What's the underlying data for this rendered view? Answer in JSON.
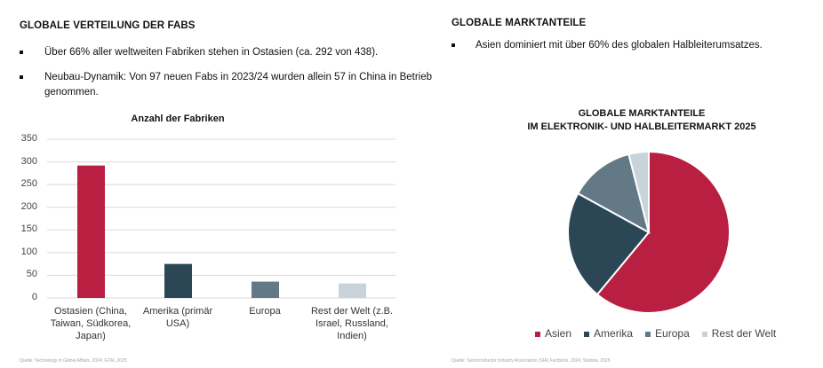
{
  "left": {
    "title": "GLOBALE VERTEILUNG DER FABS",
    "bullets": [
      "Über 66% aller weltweiten Fabriken stehen in Ostasien (ca. 292 von 438).",
      "Neubau-Dynamik: Von 97 neuen Fabs in 2023/24 wurden allein 57 in China in Betrieb genommen."
    ],
    "source": "Quelle: Technology in Global Affairs, 2024; GTAI, 2025"
  },
  "right": {
    "title": "GLOBALE MARKTANTEILE",
    "bullets": [
      "Asien dominiert mit über 60% des globalen Halbleiterumsatzes."
    ],
    "source": "Quelle: Semiconductor Industry Association (SIA) Factbook, 2024; Statista, 2025"
  },
  "chart_data": [
    {
      "type": "bar",
      "title": "Anzahl der Fabriken",
      "categories": [
        "Ostasien (China, Taiwan, Südkorea, Japan)",
        "Amerika (primär USA)",
        "Europa",
        "Rest der Welt (z.B. Israel, Russland, Indien)"
      ],
      "values": [
        292,
        75,
        36,
        32
      ],
      "colors": [
        "#b81f40",
        "#2b4655",
        "#637a86",
        "#c9d3da"
      ],
      "yticks": [
        "0",
        "50",
        "100",
        "150",
        "200",
        "250",
        "300",
        "350"
      ],
      "ylim": [
        0,
        350
      ],
      "grid": true
    },
    {
      "type": "pie",
      "title_lines": [
        "GLOBALE MARKTANTEILE",
        "IM ELEKTRONIK- UND HALBLEITERMARKT 2025"
      ],
      "categories": [
        "Asien",
        "Amerika",
        "Europa",
        "Rest der Welt"
      ],
      "values": [
        61,
        22,
        13,
        4
      ],
      "colors": [
        "#b81f40",
        "#2b4655",
        "#637a86",
        "#c9d3da"
      ],
      "legend": "bottom"
    }
  ]
}
